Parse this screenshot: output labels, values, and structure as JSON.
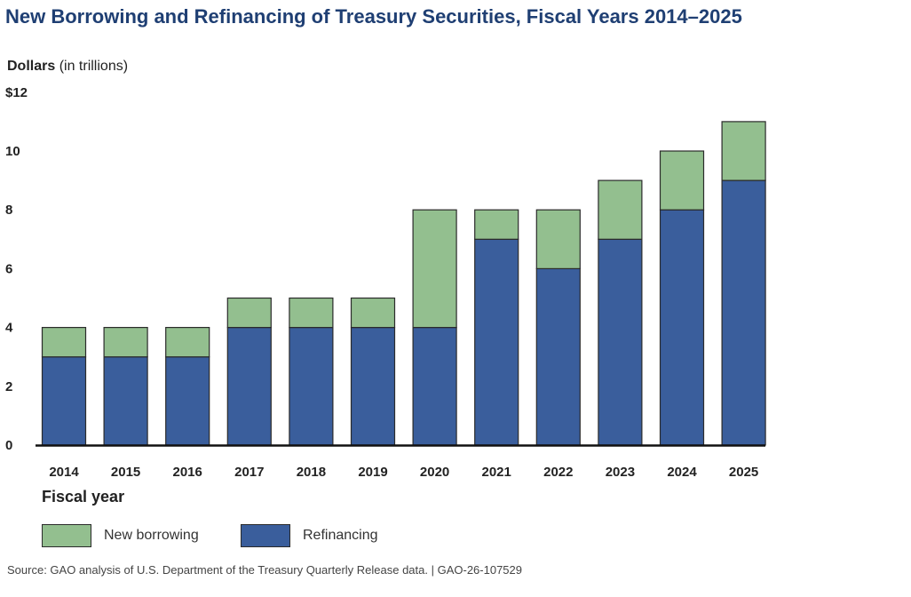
{
  "title": "New Borrowing and Refinancing of Treasury Securities, Fiscal Years 2014–2025",
  "source": "Source: GAO analysis of U.S. Department of the Treasury Quarterly Release data.  |  GAO-26-107529",
  "colors": {
    "title": "#1f3f73",
    "refinancing": "#3a5e9c",
    "new_borrowing": "#93bf8f",
    "outline": "#2b2b2b"
  },
  "chart_data": {
    "type": "bar",
    "stacked": true,
    "title": "New Borrowing and Refinancing of Treasury Securities, Fiscal Years 2014–2025",
    "ylabel_bold": "Dollars",
    "ylabel_rest": " (in trillions)",
    "xlabel": "Fiscal year",
    "ylim": [
      0,
      12
    ],
    "yticks": [
      0,
      2,
      4,
      6,
      8,
      10,
      12
    ],
    "ytick_labels": [
      "0",
      "2",
      "4",
      "6",
      "8",
      "10",
      "$12"
    ],
    "grid": false,
    "legend_position": "bottom-left",
    "categories": [
      "2014",
      "2015",
      "2016",
      "2017",
      "2018",
      "2019",
      "2020",
      "2021",
      "2022",
      "2023",
      "2024",
      "2025"
    ],
    "series": [
      {
        "name": "Refinancing",
        "color": "#3a5e9c",
        "values": [
          3,
          3,
          3,
          4,
          4,
          4,
          4,
          7,
          6,
          7,
          8,
          9
        ]
      },
      {
        "name": "New borrowing",
        "color": "#93bf8f",
        "values": [
          1,
          1,
          1,
          1,
          1,
          1,
          4,
          1,
          2,
          2,
          2,
          2
        ]
      }
    ]
  }
}
